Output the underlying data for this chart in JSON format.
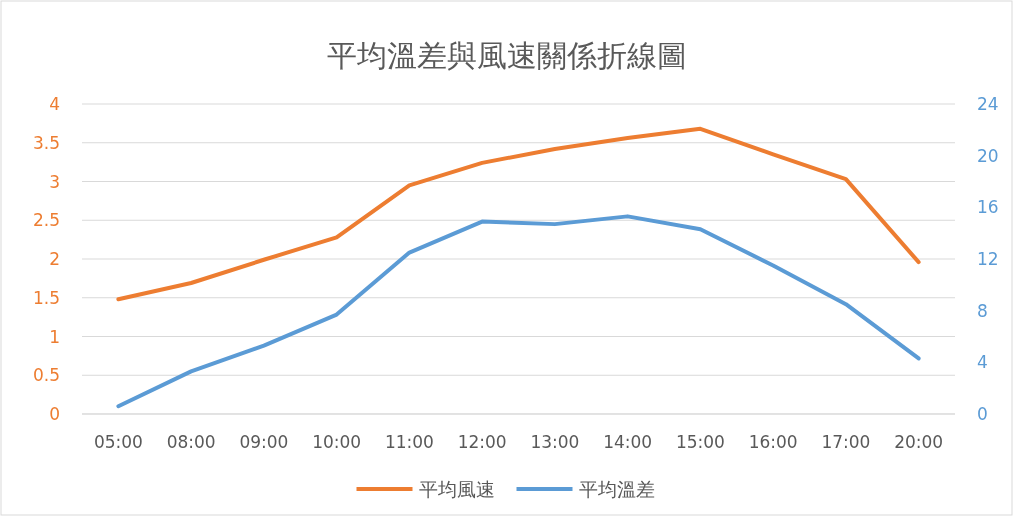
{
  "chart_data": {
    "type": "line",
    "title": "平均溫差與風速關係折線圖",
    "categories": [
      "05:00",
      "08:00",
      "09:00",
      "10:00",
      "11:00",
      "12:00",
      "13:00",
      "14:00",
      "15:00",
      "16:00",
      "17:00",
      "20:00"
    ],
    "series": [
      {
        "name": "平均風速",
        "color": "#ed7d31",
        "values": [
          1.48,
          1.69,
          1.99,
          2.28,
          2.95,
          3.24,
          3.42,
          3.56,
          3.68,
          3.35,
          3.03,
          1.96
        ]
      },
      {
        "name": "平均溫差",
        "color": "#5b9bd5",
        "axis": "y2",
        "values": [
          0.6,
          3.3,
          5.3,
          7.7,
          12.5,
          14.9,
          14.7,
          15.3,
          14.3,
          11.5,
          8.5,
          4.3
        ]
      }
    ],
    "ylim": [
      0,
      4
    ],
    "yticks": [
      0,
      0.5,
      1,
      1.5,
      2,
      2.5,
      3,
      3.5,
      4
    ],
    "y2lim": [
      0,
      24
    ],
    "y2ticks": [
      0,
      4,
      8,
      12,
      16,
      20,
      24
    ],
    "grid": "y",
    "legend": "bottom"
  }
}
